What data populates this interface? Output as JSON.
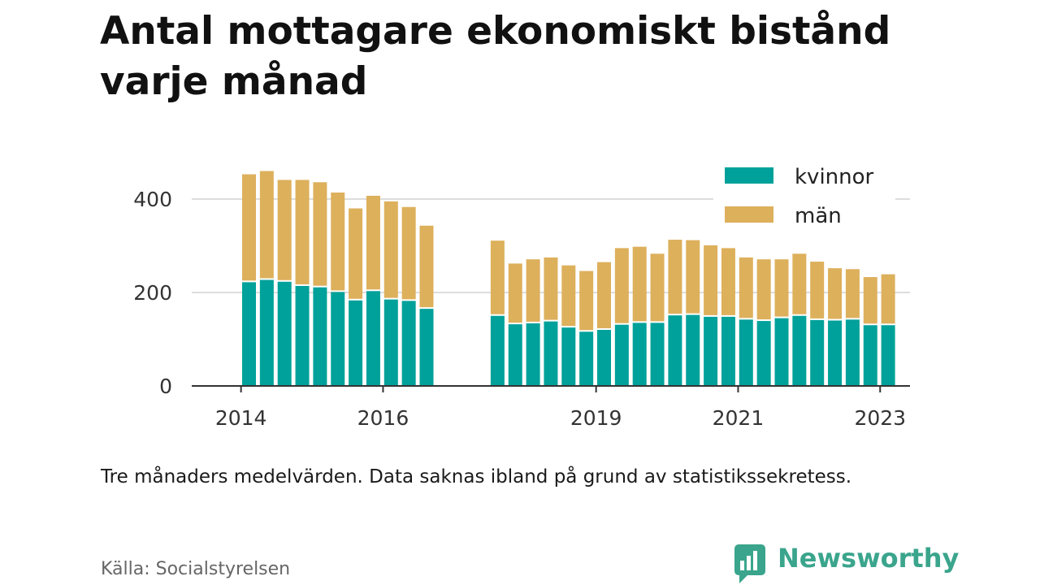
{
  "title": "Antal mottagare ekonomiskt bistånd varje månad",
  "note": "Tre månaders medelvärden. Data saknas ibland på grund av statistikssekretess.",
  "source": "Källa: Socialstyrelsen",
  "brand": {
    "name": "Newsworthy",
    "color": "#3aa58c"
  },
  "colors": {
    "kvinnor": "#00a19a",
    "man": "#ddb05c",
    "grid": "#dddddd",
    "axis": "#333333"
  },
  "chart_data": {
    "type": "bar",
    "stacked": true,
    "title": "Antal mottagare ekonomiskt bistånd varje månad",
    "x_ticks": [
      "2014",
      "2016",
      "2019",
      "2021",
      "2023"
    ],
    "y_ticks": [
      0,
      200,
      400
    ],
    "ylim": [
      0,
      460
    ],
    "grid": true,
    "legend_position": "top-right",
    "series": [
      {
        "name": "kvinnor",
        "values": [
          222,
          227,
          223,
          214,
          211,
          201,
          183,
          203,
          185,
          182,
          165,
          150,
          132,
          134,
          138,
          125,
          116,
          120,
          131,
          135,
          135,
          151,
          152,
          148,
          148,
          142,
          139,
          145,
          150,
          141,
          140,
          142,
          130,
          130
        ]
      },
      {
        "name": "män",
        "values": [
          231,
          233,
          218,
          227,
          225,
          213,
          197,
          204,
          210,
          201,
          178,
          161,
          130,
          137,
          137,
          133,
          130,
          145,
          164,
          163,
          148,
          162,
          160,
          153,
          147,
          133,
          132,
          126,
          133,
          125,
          112,
          108,
          103,
          109
        ]
      }
    ],
    "period_indices": [
      0,
      1,
      2,
      3,
      4,
      5,
      6,
      7,
      8,
      9,
      10,
      14,
      15,
      16,
      17,
      18,
      19,
      20,
      21,
      22,
      23,
      24,
      25,
      26,
      27,
      28,
      29,
      30,
      31,
      32,
      33,
      34,
      35,
      36
    ]
  }
}
